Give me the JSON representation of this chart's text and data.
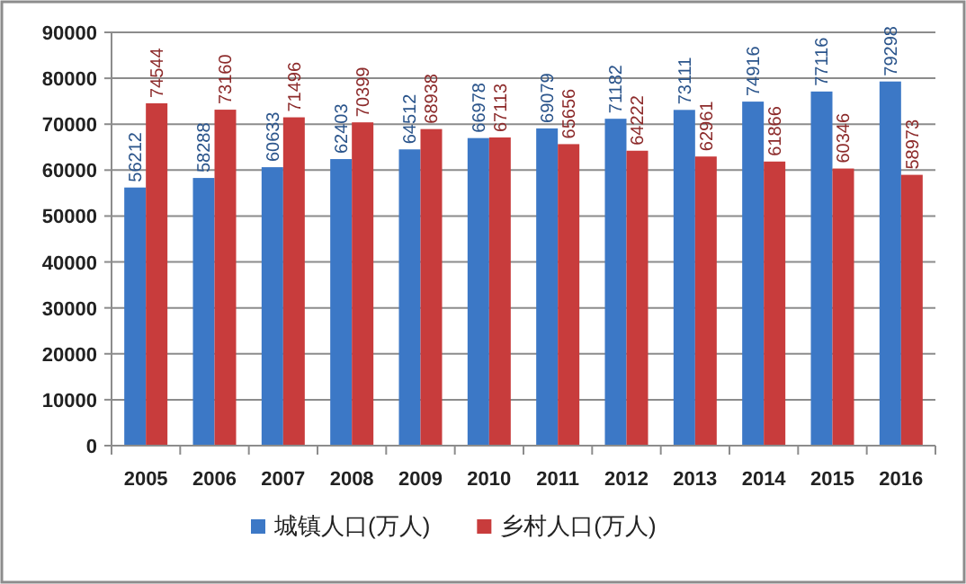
{
  "chart_data": {
    "type": "bar",
    "categories": [
      "2005",
      "2006",
      "2007",
      "2008",
      "2009",
      "2010",
      "2011",
      "2012",
      "2013",
      "2014",
      "2015",
      "2016"
    ],
    "series": [
      {
        "name": "城镇人口(万人)",
        "color": "#3c78c6",
        "values": [
          56212,
          58288,
          60633,
          62403,
          64512,
          66978,
          69079,
          71182,
          73111,
          74916,
          77116,
          79298
        ]
      },
      {
        "name": "乡村人口(万人)",
        "color": "#c83c3c",
        "values": [
          74544,
          73160,
          71496,
          70399,
          68938,
          67113,
          65656,
          64222,
          62961,
          61866,
          60346,
          58973
        ]
      }
    ],
    "ylim": [
      0,
      90000
    ],
    "yticks": [
      0,
      10000,
      20000,
      30000,
      40000,
      50000,
      60000,
      70000,
      80000,
      90000
    ],
    "grid": "y",
    "legend": "bottom",
    "data_labels": true
  }
}
